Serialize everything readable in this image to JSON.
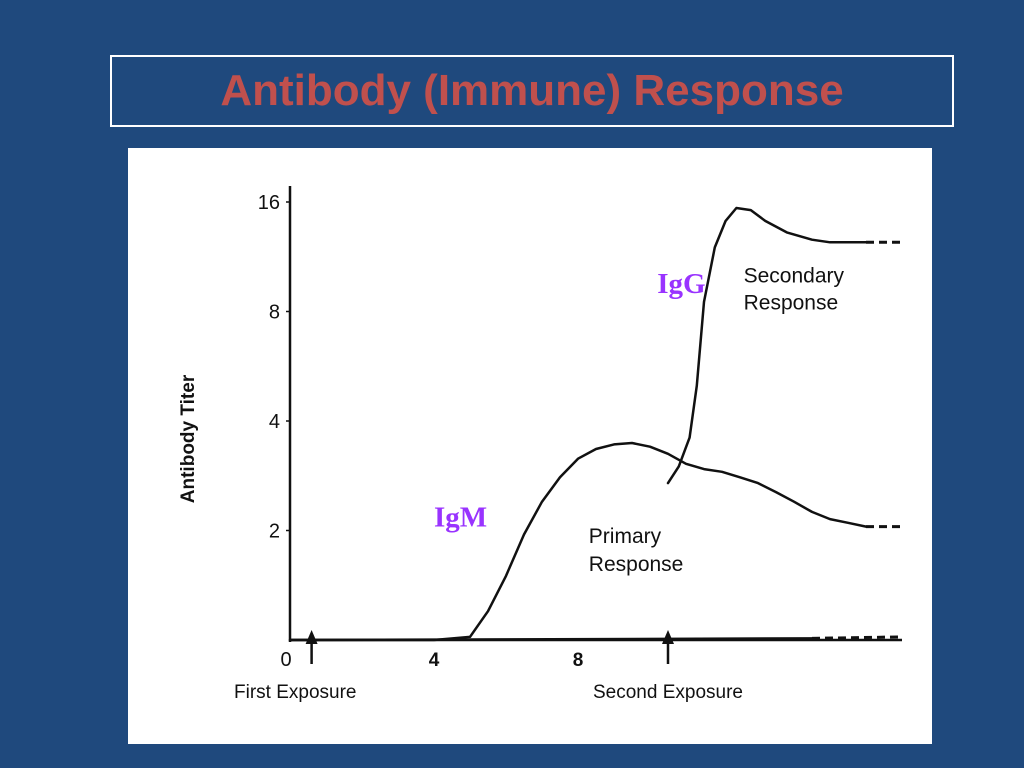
{
  "slide": {
    "title": "Antibody (Immune) Response",
    "background": "#1f497d",
    "title_color": "#c0504d",
    "title_border_color": "#ffffff"
  },
  "chart_data": {
    "type": "line",
    "title": "Antibody (Immune) Response",
    "ylabel": "Antibody Titer",
    "xlabel": "",
    "y_scale": "log2",
    "ylim": [
      1,
      16
    ],
    "xlim": [
      0,
      17
    ],
    "y_ticks": [
      {
        "value": 2,
        "label": "2"
      },
      {
        "value": 4,
        "label": "4"
      },
      {
        "value": 8,
        "label": "8"
      },
      {
        "value": 16,
        "label": "16"
      }
    ],
    "x_ticks": [
      {
        "value": 0,
        "label": "0"
      },
      {
        "value": 4,
        "label": "4"
      },
      {
        "value": 8,
        "label": "8"
      }
    ],
    "grid": false,
    "series": [
      {
        "name": "IgM",
        "color": "#111111",
        "points": [
          [
            0,
            1
          ],
          [
            4,
            1
          ],
          [
            5,
            1.02
          ],
          [
            5.5,
            1.2
          ],
          [
            6,
            1.5
          ],
          [
            6.5,
            1.95
          ],
          [
            7,
            2.4
          ],
          [
            7.5,
            2.8
          ],
          [
            8,
            3.15
          ],
          [
            8.5,
            3.35
          ],
          [
            9,
            3.45
          ],
          [
            9.5,
            3.48
          ],
          [
            10,
            3.4
          ],
          [
            10.5,
            3.25
          ],
          [
            11,
            3.05
          ],
          [
            11.5,
            2.95
          ],
          [
            12,
            2.9
          ],
          [
            12.5,
            2.8
          ],
          [
            13,
            2.7
          ],
          [
            13.5,
            2.55
          ],
          [
            14,
            2.4
          ],
          [
            14.5,
            2.25
          ],
          [
            15,
            2.15
          ],
          [
            15.5,
            2.1
          ],
          [
            16,
            2.05
          ]
        ],
        "dashed_tail": [
          [
            16,
            2.05
          ],
          [
            17,
            2.05
          ]
        ]
      },
      {
        "name": "IgG",
        "color": "#111111",
        "points": [
          [
            10.5,
            2.7
          ],
          [
            10.8,
            3.0
          ],
          [
            11.1,
            3.6
          ],
          [
            11.3,
            5.0
          ],
          [
            11.5,
            8.5
          ],
          [
            11.8,
            12.0
          ],
          [
            12.1,
            14.2
          ],
          [
            12.4,
            15.4
          ],
          [
            12.8,
            15.2
          ],
          [
            13.2,
            14.2
          ],
          [
            13.8,
            13.2
          ],
          [
            14.5,
            12.6
          ],
          [
            15,
            12.4
          ],
          [
            15.5,
            12.4
          ],
          [
            16,
            12.4
          ]
        ],
        "dashed_tail": [
          [
            16,
            12.4
          ],
          [
            17,
            12.4
          ]
        ]
      },
      {
        "name": "Baseline",
        "color": "#111111",
        "points": [
          [
            0,
            1
          ],
          [
            14.5,
            1.01
          ]
        ],
        "dashed_tail": [
          [
            14.5,
            1.01
          ],
          [
            17,
            1.02
          ]
        ]
      }
    ],
    "annotations": [
      {
        "id": "igg",
        "text": "IgG",
        "x": 10.2,
        "y": 9.0,
        "color": "#9933ff"
      },
      {
        "id": "igm",
        "text": "IgM",
        "x": 4.0,
        "y": 2.05,
        "color": "#9933ff"
      },
      {
        "id": "secondary1",
        "text": "Secondary",
        "x": 12.6,
        "y": 9.6
      },
      {
        "id": "secondary2",
        "text": "Response",
        "x": 12.6,
        "y": 8.1
      },
      {
        "id": "primary1",
        "text": "Primary",
        "x": 8.3,
        "y": 1.85
      },
      {
        "id": "primary2",
        "text": "Response",
        "x": 8.3,
        "y": 1.55
      }
    ],
    "events": [
      {
        "id": "first",
        "label": "First Exposure",
        "x": 0.6
      },
      {
        "id": "second",
        "label": "Second Exposure",
        "x": 10.5
      }
    ]
  }
}
